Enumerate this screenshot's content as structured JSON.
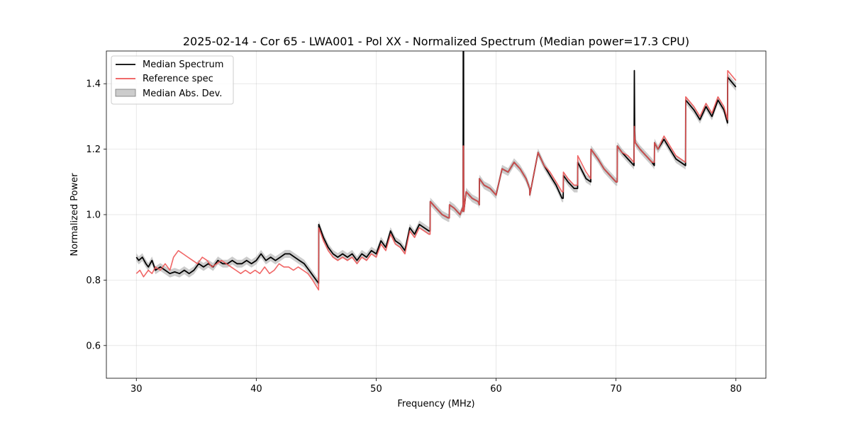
{
  "chart_data": {
    "type": "line",
    "title": "2025-02-14 - Cor 65 - LWA001 - Pol XX - Normalized Spectrum (Median power=17.3 CPU)",
    "xlabel": "Frequency (MHz)",
    "ylabel": "Normalized Power",
    "xlim": [
      27.5,
      82.5
    ],
    "ylim": [
      0.5,
      1.5
    ],
    "xticks": [
      30,
      40,
      50,
      60,
      70,
      80
    ],
    "yticks": [
      0.6,
      0.8,
      1.0,
      1.2,
      1.4
    ],
    "grid": true,
    "legend_location": "upper-left",
    "series": [
      {
        "name": "Median Spectrum",
        "color": "#000000",
        "mad": 0.012,
        "x": [
          30.0,
          30.2,
          30.5,
          30.8,
          31.0,
          31.3,
          31.6,
          32.0,
          32.4,
          32.8,
          33.2,
          33.6,
          34.0,
          34.4,
          34.8,
          35.2,
          35.6,
          36.0,
          36.4,
          36.8,
          37.2,
          37.6,
          38.0,
          38.4,
          38.8,
          39.2,
          39.6,
          40.0,
          40.4,
          40.8,
          41.2,
          41.6,
          42.0,
          42.4,
          42.8,
          43.2,
          43.6,
          44.0,
          44.4,
          44.8,
          45.2,
          45.21,
          45.6,
          46.0,
          46.4,
          46.8,
          47.2,
          47.6,
          48.0,
          48.4,
          48.8,
          49.2,
          49.6,
          50.0,
          50.4,
          50.8,
          51.2,
          51.6,
          52.0,
          52.4,
          52.8,
          53.2,
          53.6,
          54.0,
          54.4,
          54.5,
          54.51,
          55.0,
          55.5,
          56.0,
          56.1,
          56.11,
          56.5,
          57.0,
          57.2,
          57.25,
          57.26,
          57.29,
          57.3,
          57.31,
          57.5,
          58.0,
          58.5,
          58.6,
          58.61,
          59.0,
          59.5,
          60.0,
          60.5,
          61.0,
          61.5,
          62.0,
          62.5,
          62.8,
          62.81,
          63.5,
          64.0,
          64.5,
          65.0,
          65.5,
          65.6,
          65.61,
          66.0,
          66.5,
          66.8,
          66.81,
          67.5,
          67.9,
          67.91,
          68.5,
          69.0,
          69.5,
          70.0,
          70.1,
          70.11,
          70.5,
          71.0,
          71.5,
          71.53,
          71.56,
          71.6,
          72.0,
          72.5,
          73.0,
          73.2,
          73.21,
          73.5,
          74.0,
          74.5,
          75.0,
          75.8,
          75.81,
          76.5,
          77.0,
          77.5,
          78.0,
          78.5,
          79.0,
          79.3,
          79.31,
          80.0
        ],
        "y": [
          0.87,
          0.86,
          0.87,
          0.85,
          0.84,
          0.86,
          0.83,
          0.84,
          0.83,
          0.82,
          0.825,
          0.82,
          0.83,
          0.82,
          0.83,
          0.85,
          0.84,
          0.85,
          0.84,
          0.86,
          0.85,
          0.85,
          0.86,
          0.85,
          0.85,
          0.86,
          0.85,
          0.86,
          0.88,
          0.86,
          0.87,
          0.86,
          0.87,
          0.88,
          0.88,
          0.87,
          0.86,
          0.85,
          0.83,
          0.81,
          0.79,
          0.97,
          0.93,
          0.9,
          0.88,
          0.87,
          0.88,
          0.87,
          0.88,
          0.86,
          0.88,
          0.87,
          0.89,
          0.88,
          0.92,
          0.9,
          0.95,
          0.92,
          0.91,
          0.89,
          0.96,
          0.94,
          0.97,
          0.96,
          0.95,
          0.95,
          1.04,
          1.02,
          1.0,
          0.99,
          0.99,
          1.03,
          1.02,
          1.0,
          1.02,
          1.01,
          1.5,
          1.5,
          1.02,
          1.01,
          1.07,
          1.05,
          1.04,
          1.03,
          1.11,
          1.09,
          1.08,
          1.06,
          1.14,
          1.13,
          1.16,
          1.14,
          1.11,
          1.08,
          1.06,
          1.19,
          1.15,
          1.12,
          1.09,
          1.05,
          1.05,
          1.12,
          1.1,
          1.08,
          1.08,
          1.16,
          1.11,
          1.1,
          1.2,
          1.17,
          1.14,
          1.12,
          1.1,
          1.1,
          1.21,
          1.19,
          1.17,
          1.15,
          1.44,
          1.26,
          1.22,
          1.2,
          1.18,
          1.16,
          1.15,
          1.22,
          1.2,
          1.23,
          1.2,
          1.17,
          1.15,
          1.35,
          1.32,
          1.29,
          1.33,
          1.3,
          1.35,
          1.32,
          1.28,
          1.42,
          1.39
        ]
      },
      {
        "name": "Reference spec",
        "color": "#ee5555",
        "x": [
          30.0,
          30.3,
          30.6,
          31.0,
          31.3,
          31.6,
          32.0,
          32.4,
          32.8,
          33.1,
          33.5,
          33.9,
          34.3,
          34.7,
          35.1,
          35.5,
          35.9,
          36.3,
          36.7,
          37.1,
          37.5,
          37.9,
          38.3,
          38.7,
          39.1,
          39.5,
          39.9,
          40.3,
          40.7,
          41.1,
          41.5,
          41.9,
          42.3,
          42.7,
          43.1,
          43.5,
          43.9,
          44.3,
          44.7,
          45.2,
          45.21,
          45.6,
          46.0,
          46.4,
          46.8,
          47.2,
          47.6,
          48.0,
          48.4,
          48.8,
          49.2,
          49.6,
          50.0,
          50.4,
          50.8,
          51.2,
          51.6,
          52.0,
          52.4,
          52.8,
          53.2,
          53.6,
          54.0,
          54.4,
          54.5,
          54.51,
          55.0,
          55.5,
          56.0,
          56.1,
          56.11,
          56.5,
          57.0,
          57.2,
          57.25,
          57.26,
          57.29,
          57.3,
          57.31,
          57.5,
          58.0,
          58.5,
          58.6,
          58.61,
          59.0,
          59.5,
          60.0,
          60.5,
          61.0,
          61.5,
          62.0,
          62.5,
          62.8,
          62.81,
          63.5,
          64.0,
          64.5,
          65.0,
          65.5,
          65.6,
          65.61,
          66.0,
          66.5,
          66.8,
          66.81,
          67.5,
          67.9,
          67.91,
          68.5,
          69.0,
          69.5,
          70.0,
          70.1,
          70.11,
          70.5,
          71.0,
          71.5,
          71.53,
          71.56,
          71.6,
          72.0,
          72.5,
          73.0,
          73.2,
          73.21,
          73.5,
          74.0,
          74.5,
          75.0,
          75.8,
          75.81,
          76.5,
          77.0,
          77.5,
          78.0,
          78.5,
          79.0,
          79.3,
          79.31,
          80.0
        ],
        "y": [
          0.82,
          0.83,
          0.81,
          0.83,
          0.82,
          0.84,
          0.83,
          0.85,
          0.83,
          0.87,
          0.89,
          0.88,
          0.87,
          0.86,
          0.85,
          0.87,
          0.86,
          0.84,
          0.85,
          0.86,
          0.85,
          0.84,
          0.83,
          0.82,
          0.83,
          0.82,
          0.83,
          0.82,
          0.84,
          0.82,
          0.83,
          0.85,
          0.84,
          0.84,
          0.83,
          0.84,
          0.83,
          0.82,
          0.8,
          0.77,
          0.96,
          0.92,
          0.89,
          0.87,
          0.86,
          0.87,
          0.86,
          0.87,
          0.85,
          0.87,
          0.86,
          0.88,
          0.87,
          0.91,
          0.89,
          0.94,
          0.91,
          0.9,
          0.88,
          0.95,
          0.93,
          0.96,
          0.95,
          0.94,
          0.94,
          1.04,
          1.02,
          1.0,
          0.99,
          0.99,
          1.03,
          1.02,
          1.0,
          1.02,
          1.01,
          1.21,
          1.21,
          1.02,
          1.01,
          1.07,
          1.05,
          1.04,
          1.03,
          1.11,
          1.09,
          1.08,
          1.06,
          1.14,
          1.13,
          1.16,
          1.14,
          1.11,
          1.08,
          1.06,
          1.19,
          1.15,
          1.13,
          1.1,
          1.07,
          1.07,
          1.13,
          1.11,
          1.09,
          1.09,
          1.18,
          1.13,
          1.11,
          1.2,
          1.17,
          1.14,
          1.12,
          1.1,
          1.1,
          1.21,
          1.19,
          1.18,
          1.16,
          1.27,
          1.24,
          1.22,
          1.2,
          1.18,
          1.16,
          1.16,
          1.22,
          1.2,
          1.24,
          1.21,
          1.18,
          1.16,
          1.36,
          1.33,
          1.3,
          1.34,
          1.31,
          1.36,
          1.33,
          1.29,
          1.44,
          1.41
        ]
      }
    ],
    "legend": [
      "Median Spectrum",
      "Reference spec",
      "Median Abs. Dev."
    ],
    "band_color": "#999999"
  }
}
